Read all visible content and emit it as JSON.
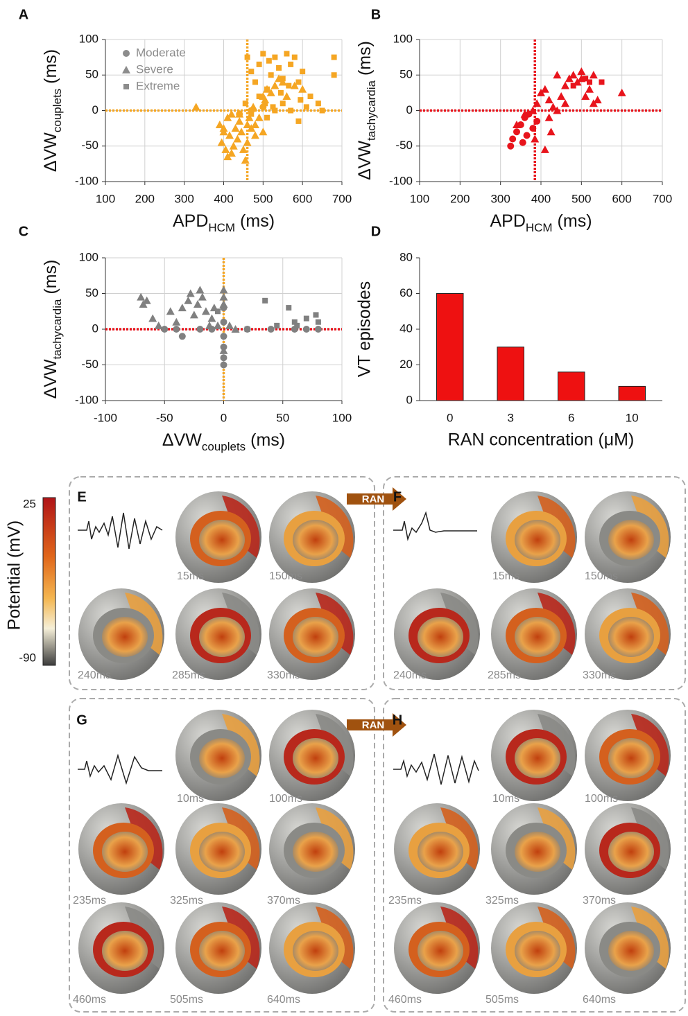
{
  "chart_data": [
    {
      "type": "scatter",
      "label": "A",
      "xlabel": [
        "APD",
        "HCM",
        " (ms)"
      ],
      "ylabel": [
        "ΔVW",
        "couplets",
        " (ms)"
      ],
      "xlim": [
        100,
        700
      ],
      "xticks": [
        100,
        200,
        300,
        400,
        500,
        600,
        700
      ],
      "ylim": [
        -100,
        100
      ],
      "yticks": [
        -100,
        -50,
        0,
        50,
        100
      ],
      "grid": true,
      "legend": "upper left",
      "legend_color": "#8c8c8c",
      "ref_lines": [
        {
          "axis": "x",
          "value": 460,
          "color": "#f5a623"
        },
        {
          "axis": "y",
          "value": 0,
          "color": "#f5a623"
        }
      ],
      "series": [
        {
          "name": "Moderate",
          "marker": "circle",
          "color": "#f5a623",
          "x": [
            440,
            470,
            500
          ],
          "y": [
            -5,
            0,
            5
          ]
        },
        {
          "name": "Severe",
          "marker": "triangle",
          "color": "#f5a623",
          "x": [
            330,
            390,
            395,
            400,
            405,
            410,
            410,
            415,
            420,
            425,
            430,
            435,
            440,
            445,
            450,
            455,
            460,
            465,
            470,
            475,
            480,
            490,
            500,
            505,
            510,
            520,
            530,
            540,
            550,
            560,
            580,
            600,
            400,
            420,
            440,
            460,
            480,
            500
          ],
          "y": [
            5,
            -20,
            -45,
            -30,
            -55,
            -10,
            -65,
            -35,
            -5,
            -50,
            -25,
            -40,
            -15,
            -30,
            -55,
            -70,
            -45,
            -10,
            -25,
            5,
            -20,
            -10,
            -30,
            15,
            30,
            25,
            35,
            45,
            40,
            20,
            35,
            30,
            -25,
            -60,
            -5,
            -20,
            -35,
            20
          ]
        },
        {
          "name": "Extreme",
          "marker": "square",
          "color": "#f5a623",
          "x": [
            460,
            470,
            480,
            490,
            500,
            505,
            510,
            515,
            520,
            525,
            530,
            540,
            545,
            550,
            560,
            565,
            570,
            580,
            590,
            595,
            600,
            610,
            620,
            640,
            650,
            680,
            680,
            470,
            490,
            510,
            530,
            550,
            570,
            590,
            455
          ],
          "y": [
            75,
            55,
            40,
            65,
            80,
            10,
            30,
            70,
            50,
            5,
            75,
            60,
            25,
            45,
            80,
            35,
            65,
            75,
            40,
            15,
            55,
            5,
            20,
            10,
            0,
            75,
            50,
            -5,
            20,
            -10,
            0,
            10,
            0,
            -15,
            10
          ]
        }
      ]
    },
    {
      "type": "scatter",
      "label": "B",
      "xlabel": [
        "APD",
        "HCM",
        " (ms)"
      ],
      "ylabel": [
        "ΔVW",
        "tachycardia",
        " (ms)"
      ],
      "xlim": [
        100,
        700
      ],
      "xticks": [
        100,
        200,
        300,
        400,
        500,
        600,
        700
      ],
      "ylim": [
        -100,
        100
      ],
      "yticks": [
        -100,
        -50,
        0,
        50,
        100
      ],
      "grid": true,
      "ref_lines": [
        {
          "axis": "x",
          "value": 385,
          "color": "#e8141c"
        },
        {
          "axis": "y",
          "value": 0,
          "color": "#e8141c"
        }
      ],
      "series": [
        {
          "marker": "circle",
          "color": "#e8141c",
          "x": [
            325,
            330,
            340,
            350,
            355,
            360,
            365,
            370,
            380,
            390
          ],
          "y": [
            -50,
            -40,
            -30,
            -20,
            -45,
            -10,
            -35,
            -5,
            -25,
            -15
          ]
        },
        {
          "marker": "triangle",
          "color": "#e8141c",
          "x": [
            340,
            360,
            380,
            385,
            390,
            400,
            410,
            410,
            420,
            425,
            430,
            440,
            450,
            460,
            470,
            480,
            490,
            500,
            510,
            520,
            530,
            540,
            600,
            420,
            460,
            500,
            530,
            440
          ],
          "y": [
            -20,
            -5,
            0,
            -40,
            10,
            25,
            30,
            -55,
            15,
            -30,
            5,
            0,
            20,
            35,
            45,
            50,
            40,
            55,
            20,
            30,
            50,
            15,
            25,
            -10,
            10,
            45,
            10,
            50
          ]
        },
        {
          "marker": "square",
          "color": "#e8141c",
          "x": [
            480,
            510,
            520,
            550
          ],
          "y": [
            35,
            45,
            40,
            40
          ]
        }
      ]
    },
    {
      "type": "scatter",
      "label": "C",
      "xlabel": [
        "ΔVW",
        "couplets",
        " (ms)"
      ],
      "ylabel": [
        "ΔVW",
        "tachycardia",
        " (ms)"
      ],
      "xlim": [
        -100,
        100
      ],
      "xticks": [
        -100,
        -50,
        0,
        50,
        100
      ],
      "ylim": [
        -100,
        100
      ],
      "yticks": [
        -100,
        -50,
        0,
        50,
        100
      ],
      "grid": true,
      "ref_lines": [
        {
          "axis": "x",
          "value": 0,
          "color": "#f5a623"
        },
        {
          "axis": "y",
          "value": 0,
          "color": "#e8141c"
        }
      ],
      "series": [
        {
          "marker": "circle",
          "color": "#808080",
          "x": [
            -50,
            -40,
            -35,
            -20,
            -10,
            0,
            0,
            0,
            0,
            0,
            0,
            20,
            40,
            60,
            70,
            80
          ],
          "y": [
            0,
            0,
            -10,
            0,
            0,
            -50,
            -40,
            -25,
            -10,
            10,
            30,
            0,
            0,
            0,
            0,
            0
          ]
        },
        {
          "marker": "triangle",
          "color": "#808080",
          "x": [
            -70,
            -68,
            -65,
            -60,
            -55,
            -45,
            -40,
            -35,
            -30,
            -25,
            -20,
            -18,
            -15,
            -10,
            -5,
            0,
            0,
            0,
            0,
            -28,
            -22,
            -12,
            -8,
            5,
            10
          ],
          "y": [
            45,
            35,
            40,
            15,
            5,
            25,
            10,
            30,
            40,
            20,
            55,
            45,
            25,
            15,
            5,
            55,
            45,
            35,
            -30,
            50,
            35,
            5,
            30,
            5,
            0
          ]
        },
        {
          "marker": "square",
          "color": "#808080",
          "x": [
            35,
            45,
            55,
            60,
            62,
            70,
            78,
            80,
            20,
            -5
          ],
          "y": [
            40,
            5,
            30,
            10,
            5,
            15,
            20,
            10,
            0,
            25
          ]
        }
      ]
    },
    {
      "type": "bar",
      "label": "D",
      "xlabel": "RAN concentration (μM)",
      "ylabel": "VT episodes",
      "categories": [
        "0",
        "3",
        "6",
        "10"
      ],
      "values": [
        60,
        30,
        16,
        8
      ],
      "color": "#ee1111",
      "ylim": [
        0,
        80
      ],
      "yticks": [
        0,
        20,
        40,
        60,
        80
      ],
      "grid": false
    }
  ],
  "figure": {
    "colorbar": {
      "title": "Potential (mV)",
      "max": "25",
      "min": "-90"
    },
    "arrows": [
      "RAN",
      "RAN"
    ],
    "panels": [
      {
        "label": "E",
        "times": [
          "15ms",
          "150ms",
          "240ms",
          "285ms",
          "330ms"
        ]
      },
      {
        "label": "F",
        "times": [
          "15ms",
          "150ms",
          "240ms",
          "285ms",
          "330ms"
        ]
      },
      {
        "label": "G",
        "times": [
          "10ms",
          "100ms",
          "235ms",
          "325ms",
          "370ms",
          "460ms",
          "505ms",
          "640ms"
        ]
      },
      {
        "label": "H",
        "times": [
          "10ms",
          "100ms",
          "235ms",
          "325ms",
          "370ms",
          "460ms",
          "505ms",
          "640ms"
        ]
      }
    ]
  }
}
